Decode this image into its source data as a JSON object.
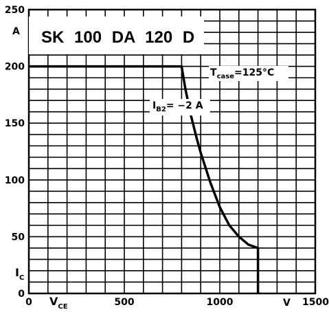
{
  "chart_data": {
    "type": "line",
    "title": "SK 100 DA 120 D",
    "x_unit": "V",
    "y_unit": "A",
    "x_symbol": {
      "main": "V",
      "sub": "CE"
    },
    "y_symbol": {
      "main": "I",
      "sub": "C"
    },
    "xlim": [
      0,
      1500
    ],
    "ylim": [
      0,
      250
    ],
    "x_ticks": [
      {
        "value": 0,
        "label": "0"
      },
      {
        "value": 500,
        "label": "500"
      },
      {
        "value": 1000,
        "label": "1000"
      },
      {
        "value": 1500,
        "label": "1500"
      }
    ],
    "y_ticks": [
      {
        "value": 0,
        "label": "0"
      },
      {
        "value": 50,
        "label": "50"
      },
      {
        "value": 100,
        "label": "100"
      },
      {
        "value": 150,
        "label": "150"
      },
      {
        "value": 200,
        "label": "200"
      },
      {
        "value": 250,
        "label": "250"
      }
    ],
    "grid": true,
    "series": [
      {
        "x": [
          0,
          800,
          800,
          820,
          850,
          880,
          900,
          950,
          1000,
          1050,
          1100,
          1150,
          1200,
          1200
        ],
        "y": [
          200,
          200,
          200,
          180,
          156,
          136,
          124,
          98,
          76,
          60,
          50,
          43,
          40,
          0
        ]
      }
    ],
    "annotations": {
      "tcase": {
        "main": "T",
        "sub": "case",
        "rest": "=125°C"
      },
      "ib2": {
        "main": "I",
        "sub": "B2",
        "rest": "= −2 A"
      }
    }
  }
}
